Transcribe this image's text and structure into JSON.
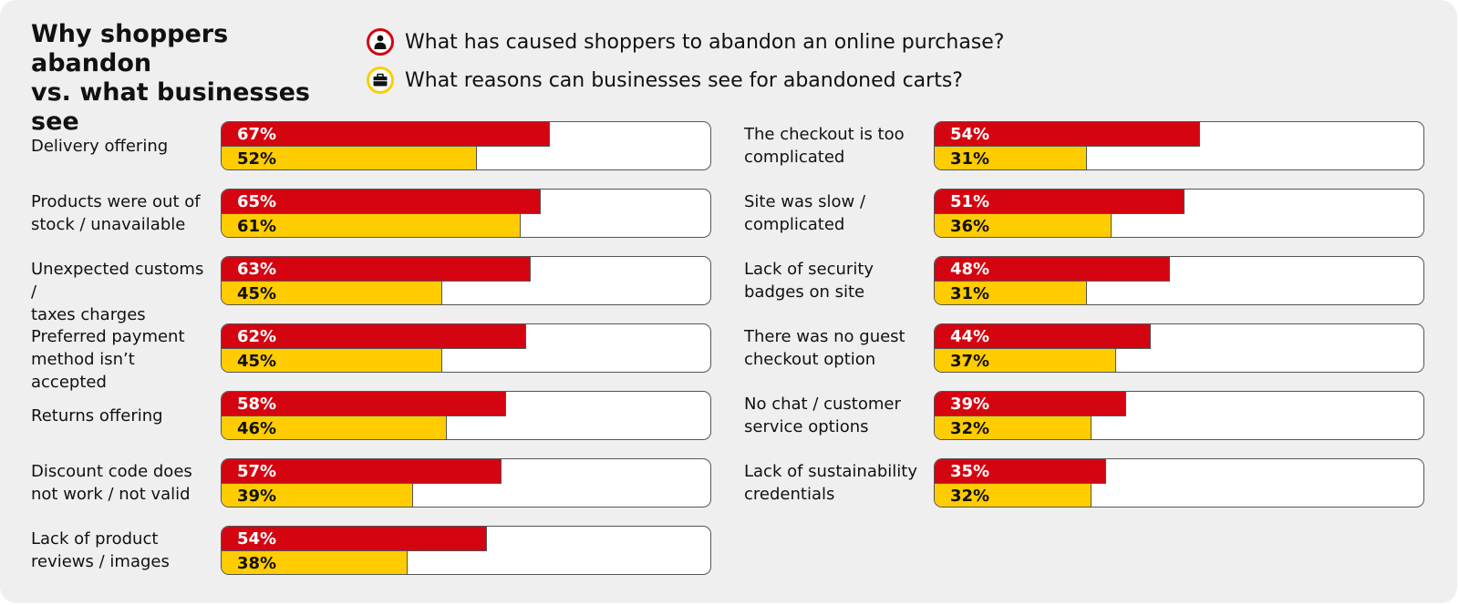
{
  "title": "Why shoppers abandon\nvs. what businesses see",
  "legend": [
    {
      "key": "shoppers",
      "text": "What has caused shoppers to abandon an online purchase?",
      "icon": "person-icon",
      "color": "#d40511"
    },
    {
      "key": "businesses",
      "text": "What reasons can businesses see for abandoned carts?",
      "icon": "briefcase-icon",
      "color": "#ffcc00"
    }
  ],
  "colors": {
    "shoppers": "#d40511",
    "businesses": "#ffcc00",
    "background": "#efefef"
  },
  "chart_data": {
    "type": "bar",
    "orientation": "horizontal",
    "value_unit": "%",
    "xlim": [
      0,
      100
    ],
    "series": [
      {
        "name": "What has caused shoppers to abandon an online purchase?"
      },
      {
        "name": "What reasons can businesses see for abandoned carts?"
      }
    ],
    "categories": [
      {
        "label": "Delivery offering",
        "shoppers": 67,
        "businesses": 52
      },
      {
        "label": "Products were out of\nstock / unavailable",
        "shoppers": 65,
        "businesses": 61
      },
      {
        "label": "Unexpected customs /\ntaxes charges",
        "shoppers": 63,
        "businesses": 45
      },
      {
        "label": "Preferred payment\nmethod isn’t accepted",
        "shoppers": 62,
        "businesses": 45
      },
      {
        "label": "Returns offering",
        "shoppers": 58,
        "businesses": 46
      },
      {
        "label": "Discount code does\nnot work / not valid",
        "shoppers": 57,
        "businesses": 39
      },
      {
        "label": "Lack of product\nreviews / images",
        "shoppers": 54,
        "businesses": 38
      },
      {
        "label": "The checkout is too\ncomplicated",
        "shoppers": 54,
        "businesses": 31
      },
      {
        "label": "Site was slow /\ncomplicated",
        "shoppers": 51,
        "businesses": 36
      },
      {
        "label": "Lack of security\nbadges on site",
        "shoppers": 48,
        "businesses": 31
      },
      {
        "label": "There was no guest\ncheckout option",
        "shoppers": 44,
        "businesses": 37
      },
      {
        "label": "No chat / customer\nservice options",
        "shoppers": 39,
        "businesses": 32
      },
      {
        "label": "Lack of sustainability\ncredentials",
        "shoppers": 35,
        "businesses": 32
      }
    ]
  }
}
